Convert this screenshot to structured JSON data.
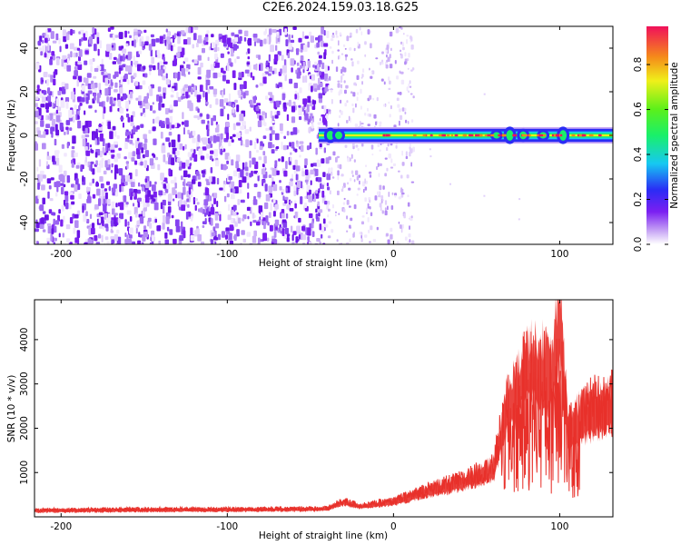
{
  "title": "C2E6.2024.159.03.18.G25",
  "chart_data": [
    {
      "type": "heatmap",
      "xlabel": "Height of straight line (km)",
      "ylabel": "Frequency (Hz)",
      "xlim": [
        -216,
        132
      ],
      "ylim": [
        -50,
        50
      ],
      "x_ticks": [
        -200,
        -100,
        0,
        100
      ],
      "x_tick_labels": [
        "-200",
        "-100",
        "0",
        "100"
      ],
      "y_ticks": [
        -40,
        -20,
        0,
        20,
        40
      ],
      "y_tick_labels": [
        "-40",
        "-20",
        "0",
        "20",
        "40"
      ],
      "noise_region_x": [
        -216,
        -40
      ],
      "sparse_noise_region_x": [
        -40,
        12
      ],
      "signal_band": {
        "x_start": -45,
        "x_end": 132,
        "center_hz": 0,
        "half_width_hz": 3
      },
      "colorbar": {
        "label": "Normalized spectral amplitude",
        "range": [
          0,
          0.97
        ],
        "ticks": [
          0.0,
          0.2,
          0.4,
          0.6,
          0.8
        ],
        "tick_labels": [
          "0.0",
          "0.2",
          "0.4",
          "0.6",
          "0.8"
        ]
      },
      "grid": false
    },
    {
      "type": "line",
      "xlabel": "Height of straight line (km)",
      "ylabel": "SNR (10 * v/v)",
      "xlim": [
        -216,
        132
      ],
      "ylim": [
        0,
        4900
      ],
      "x_ticks": [
        -200,
        -100,
        0,
        100
      ],
      "x_tick_labels": [
        "-200",
        "-100",
        "0",
        "100"
      ],
      "y_ticks": [
        1000,
        2000,
        3000,
        4000
      ],
      "y_tick_labels": [
        "1000",
        "2000",
        "3000",
        "4000"
      ],
      "color": "#e8302a",
      "x": [
        -216,
        -180,
        -140,
        -100,
        -60,
        -40,
        -30,
        -20,
        0,
        20,
        40,
        60,
        68,
        75,
        80,
        90,
        95,
        100,
        105,
        110,
        120,
        132
      ],
      "y": [
        150,
        160,
        170,
        170,
        180,
        190,
        350,
        250,
        350,
        600,
        800,
        1100,
        2500,
        3000,
        3500,
        3500,
        3200,
        4700,
        2000,
        2200,
        2500,
        2600
      ],
      "grid": false
    }
  ],
  "colors": {
    "signal_line": "#e8302a",
    "noise_purple": "#7a1ef0",
    "frame": "#000000"
  }
}
